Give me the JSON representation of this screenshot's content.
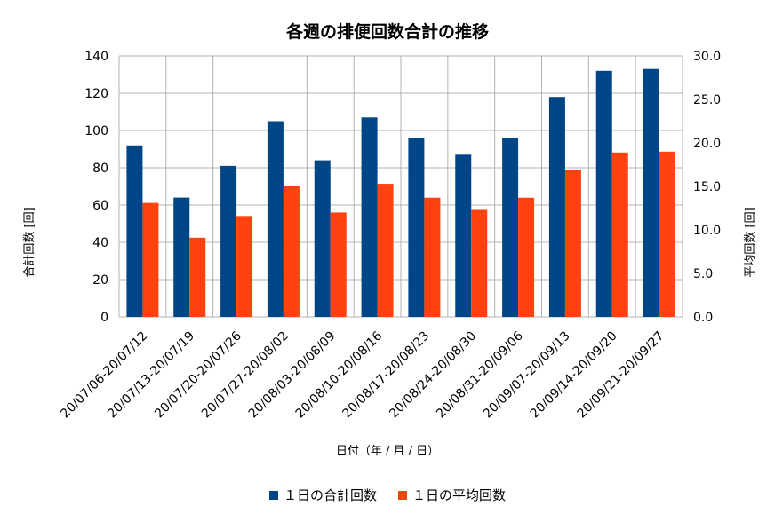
{
  "chart_data": {
    "type": "bar",
    "title": "各週の排便回数合計の推移",
    "xlabel": "日付（年 / 月 / 日）",
    "ylabel_left": "合計回数 [回]",
    "ylabel_right": "平均回数 [回]",
    "ylim_left": [
      0,
      140
    ],
    "ylim_right": [
      0,
      30
    ],
    "yticks_left": [
      "0",
      "20",
      "40",
      "60",
      "80",
      "100",
      "120",
      "140"
    ],
    "yticks_right": [
      "0.0",
      "5.0",
      "10.0",
      "15.0",
      "20.0",
      "25.0",
      "30.0"
    ],
    "grid": true,
    "legend_position": "bottom",
    "categories": [
      "20/07/06-20/07/12",
      "20/07/13-20/07/19",
      "20/07/20-20/07/26",
      "20/07/27-20/08/02",
      "20/08/03-20/08/09",
      "20/08/10-20/08/16",
      "20/08/17-20/08/23",
      "20/08/24-20/08/30",
      "20/08/31-20/09/06",
      "20/09/07-20/09/13",
      "20/09/14-20/09/20",
      "20/09/21-20/09/27"
    ],
    "series": [
      {
        "name": "１日の合計回数",
        "axis": "left",
        "color": "#004586",
        "values": [
          92,
          64,
          81,
          105,
          84,
          107,
          96,
          87,
          96,
          118,
          132,
          133
        ]
      },
      {
        "name": "１日の平均回数",
        "axis": "right",
        "color": "#ff420e",
        "values": [
          13.1,
          9.1,
          11.6,
          15.0,
          12.0,
          15.3,
          13.7,
          12.4,
          13.7,
          16.9,
          18.9,
          19.0
        ]
      }
    ]
  }
}
